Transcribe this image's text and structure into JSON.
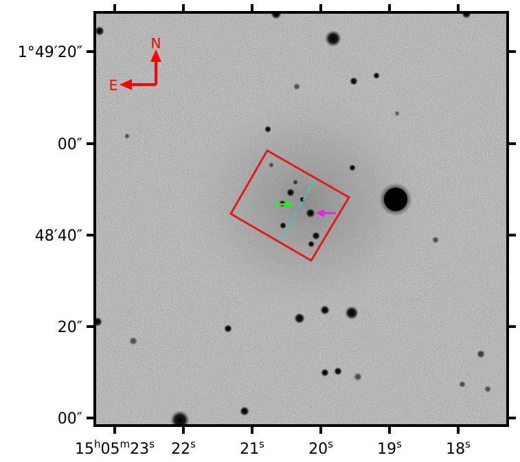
{
  "image": {
    "description_colors": {
      "background_gray": "#bdbdbd",
      "star": "#000000",
      "slit_box": "#e31a1c",
      "slit_line": "#20d8d8",
      "arrow_left": "#22ee22",
      "arrow_right": "#ee22ee",
      "compass": "#ff0000",
      "frame": "#000000"
    }
  },
  "compass": {
    "north_label": "N",
    "east_label": "E"
  },
  "axes": {
    "y_ticks": [
      {
        "text": "1°49′20″"
      },
      {
        "text": "00″"
      },
      {
        "text": "48′40″"
      },
      {
        "text": "20″"
      },
      {
        "text": "00″"
      }
    ],
    "x_ticks": [
      {
        "main": "15",
        "sup1": "h",
        "mid": "05",
        "sup2": "m",
        "tail": "23",
        "sup3": "s"
      },
      {
        "main": "22",
        "sup3": "s"
      },
      {
        "main": "21",
        "sup3": "s"
      },
      {
        "main": "20",
        "sup3": "s"
      },
      {
        "main": "19",
        "sup3": "s"
      },
      {
        "main": "18",
        "sup3": "s"
      }
    ]
  }
}
